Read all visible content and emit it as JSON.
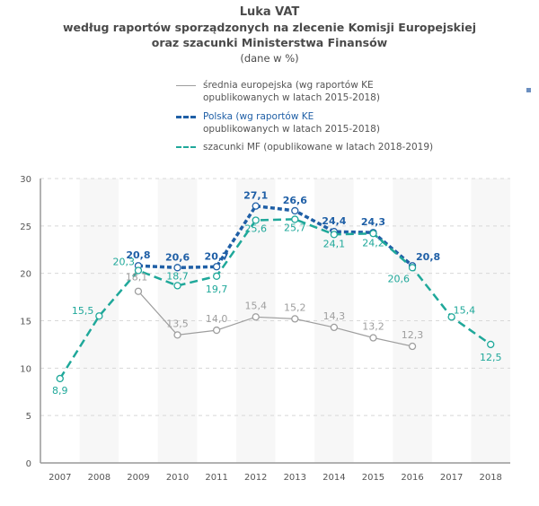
{
  "chart_data": {
    "type": "line",
    "title": "Luka VAT",
    "subtitle_lines": [
      "według raportów sporządzonych na zlecenie Komisji Europejskiej",
      "oraz szacunki Ministerstwa Finansów",
      "(dane w %)"
    ],
    "xlabel": "",
    "ylabel": "",
    "x": [
      "2007",
      "2008",
      "2009",
      "2010",
      "2011",
      "2012",
      "2013",
      "2014",
      "2015",
      "2016",
      "2017",
      "2018"
    ],
    "ylim": [
      0,
      30
    ],
    "yticks": [
      "0",
      "5",
      "10",
      "15",
      "20",
      "25",
      "30"
    ],
    "grid": "horizontal dashed",
    "legend_position": "top",
    "series": [
      {
        "name": "średnia europejska (wg raportów KE opublikowanych w latach 2015-2018)",
        "legend_lines": [
          "średnia europejska (wg raportów KE",
          "opublikowanych w latach 2015-2018)"
        ],
        "color": "#9e9e9e",
        "style": "solid",
        "values": [
          null,
          null,
          18.1,
          13.5,
          14.0,
          15.4,
          15.2,
          14.3,
          13.2,
          12.3,
          null,
          null
        ],
        "labels": [
          null,
          null,
          "18,1",
          "13,5",
          "14,0",
          "15,4",
          "15,2",
          "14,3",
          "13,2",
          "12,3",
          null,
          null
        ]
      },
      {
        "name": "Polska (wg raportów KE opublikowanych w latach 2015-2018)",
        "legend_lines": [
          "Polska  (wg raportów KE",
          "opublikowanych w latach 2015-2018)"
        ],
        "color": "#1f5fa6",
        "style": "dotted-heavy",
        "values": [
          null,
          null,
          20.8,
          20.6,
          20.7,
          27.1,
          26.6,
          24.4,
          24.3,
          20.8,
          null,
          null
        ],
        "labels": [
          null,
          null,
          "20,8",
          "20,6",
          "20,7",
          "27,1",
          "26,6",
          "24,4",
          "24,3",
          "20,8",
          null,
          null
        ]
      },
      {
        "name": "szacunki MF (opublikowane w latach 2018-2019)",
        "legend_lines": [
          "szacunki MF (opublikowane w latach 2018-2019)"
        ],
        "color": "#1fa89a",
        "style": "dashed",
        "values": [
          8.9,
          15.5,
          20.3,
          18.7,
          19.7,
          25.6,
          25.7,
          24.1,
          24.2,
          20.6,
          15.4,
          12.5
        ],
        "labels": [
          "8,9",
          "15,5",
          "20,3",
          "18,7",
          "19,7",
          "25,6",
          "25,7",
          "24,1",
          "24,2",
          "20,6",
          "15,4",
          "12,5"
        ]
      }
    ]
  }
}
